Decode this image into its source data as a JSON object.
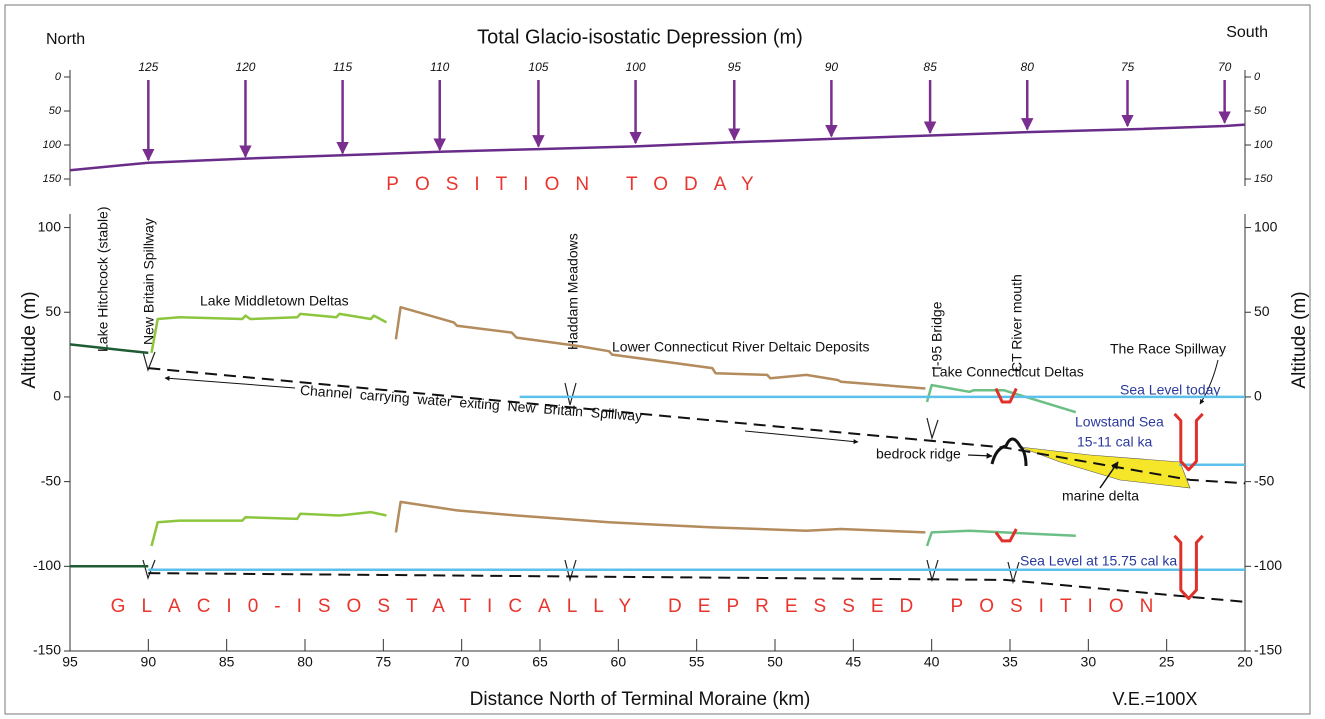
{
  "chart_data": [
    {
      "type": "line",
      "title": "Total Glacio-isostatic Depression (m)",
      "left_label": "North",
      "right_label": "South",
      "subtitle": "POSITION TODAY",
      "xlim": [
        95,
        20
      ],
      "ylim": [
        150,
        0
      ],
      "yticks": [
        0,
        50,
        100,
        150
      ],
      "series": [
        {
          "color": "#6a2c8a",
          "x": [
            95,
            90,
            83.8,
            77.6,
            71.4,
            65.1,
            58.9,
            52.6,
            46.4,
            40.1,
            33.9,
            27.5,
            21.3,
            20
          ],
          "values": [
            137,
            126,
            120,
            115,
            110,
            106,
            102,
            96,
            91,
            86,
            81,
            77,
            72,
            70
          ]
        }
      ],
      "arrows": {
        "color": "#7a2e8f",
        "x": [
          90,
          83.8,
          77.6,
          71.4,
          65.1,
          58.9,
          52.6,
          46.4,
          40.1,
          33.9,
          27.5,
          21.3
        ],
        "values": [
          125,
          120,
          115,
          110,
          105,
          100,
          95,
          90,
          85,
          80,
          75,
          70
        ]
      }
    },
    {
      "type": "line",
      "subtitle": "GLACI0-ISOSTATICALLY DEPRESSED POSITION",
      "x_label": "Distance North of Terminal Moraine (km)",
      "y_label": "Altitude (m)",
      "note": "V.E.=100X",
      "xlim": [
        95,
        20
      ],
      "ylim": [
        -150,
        108
      ],
      "xticks": [
        95,
        90,
        85,
        80,
        75,
        70,
        65,
        60,
        55,
        50,
        45,
        40,
        35,
        30,
        25,
        20
      ],
      "yticks": [
        -150,
        -100,
        -50,
        0,
        50,
        100
      ],
      "annotations": [
        "Lake Hitchcock (stable)",
        "New Britain Spillway",
        "Lake Middletown Deltas",
        "Haddam Meadows",
        "Lower Connecticut River Deltaic Deposits",
        "I-95 Bridge",
        "CT River mouth",
        "Lake Connecticut Deltas",
        "The Race Spillway",
        "Sea Level today",
        "Lowstand Sea",
        "15-11 cal ka",
        "Channel carrying water exiting New Britain Spillway",
        "bedrock ridge",
        "marine delta",
        "Sea Level at 15.75 cal ka"
      ],
      "series": [
        {
          "color": "#1f5c34",
          "x": [
            95,
            90
          ],
          "values": [
            31,
            26
          ]
        },
        {
          "color": "#8cc63f",
          "x": [
            89.8,
            89.4,
            88,
            84,
            83.8,
            83.5,
            80.5,
            80.3,
            78,
            77.8,
            75.8,
            75.6,
            74.8
          ],
          "values": [
            26,
            46,
            47,
            46,
            48,
            46,
            47,
            49,
            47,
            49,
            46,
            48,
            44
          ]
        },
        {
          "color": "#b38b5d",
          "x": [
            74.2,
            73.9,
            70.5,
            70.3,
            66.8,
            66.5,
            62.5,
            60.6,
            60.4,
            54,
            53.8,
            50.5,
            50.3,
            48,
            46,
            45.8,
            40.4
          ],
          "values": [
            34,
            53,
            44,
            42,
            38,
            35,
            30,
            27,
            25,
            17,
            14,
            13,
            11,
            13,
            10,
            9,
            5
          ]
        },
        {
          "color": "#6cbf84",
          "x": [
            40.3,
            40,
            37.6,
            37.3,
            35.4,
            30.8
          ],
          "values": [
            -3,
            7,
            3,
            4,
            4,
            -9
          ]
        },
        {
          "color": "#5bc0eb",
          "x": [
            66.3,
            20
          ],
          "values": [
            0,
            0
          ]
        },
        {
          "color": "#5bc0eb",
          "x": [
            24.2,
            20
          ],
          "values": [
            -40,
            -40
          ]
        },
        {
          "color": "#111111",
          "dashed": true,
          "x": [
            90,
            35.3,
            23.5,
            20
          ],
          "values": [
            17,
            -30,
            -49,
            -51
          ]
        },
        {
          "color": "#e0302a",
          "x": [
            35.9,
            35.5,
            35,
            34.6
          ],
          "values": [
            5,
            -3,
            -3,
            5
          ]
        },
        {
          "color": "#e0302a",
          "x": [
            24.5,
            24.1,
            24.1,
            23.6,
            23.1,
            23.1,
            22.7
          ],
          "values": [
            -10,
            -14,
            -38,
            -43,
            -38,
            -14,
            -10
          ]
        },
        {
          "color": "#1f5c34",
          "x": [
            95,
            90
          ],
          "values": [
            -100,
            -100
          ]
        },
        {
          "color": "#8cc63f",
          "x": [
            89.8,
            89.4,
            88,
            84,
            83.8,
            80.5,
            80.3,
            77.8,
            75.8,
            74.8
          ],
          "values": [
            -88,
            -74,
            -73,
            -73,
            -71,
            -72,
            -69,
            -70,
            -68,
            -70
          ]
        },
        {
          "color": "#b38b5d",
          "x": [
            74.2,
            73.9,
            70.3,
            66.5,
            60.6,
            54,
            48,
            45.8,
            40.4
          ],
          "values": [
            -80,
            -62,
            -67,
            -70,
            -74,
            -77,
            -79,
            -78,
            -80
          ]
        },
        {
          "color": "#6cbf84",
          "x": [
            40.3,
            40,
            37.6,
            35.4,
            30.8
          ],
          "values": [
            -88,
            -80,
            -79,
            -80,
            -82
          ]
        },
        {
          "color": "#5bc0eb",
          "x": [
            90,
            20
          ],
          "values": [
            -102,
            -102
          ]
        },
        {
          "color": "#111111",
          "dashed": true,
          "x": [
            90,
            35.3,
            20
          ],
          "values": [
            -104,
            -108,
            -121
          ]
        },
        {
          "color": "#e0302a",
          "x": [
            35.9,
            35.5,
            35,
            34.6
          ],
          "values": [
            -80,
            -85,
            -85,
            -78
          ]
        },
        {
          "color": "#e0302a",
          "x": [
            24.5,
            24.1,
            24.1,
            23.6,
            23.1,
            23.1,
            22.7
          ],
          "values": [
            -82,
            -86,
            -114,
            -119,
            -114,
            -86,
            -82
          ]
        }
      ]
    }
  ]
}
